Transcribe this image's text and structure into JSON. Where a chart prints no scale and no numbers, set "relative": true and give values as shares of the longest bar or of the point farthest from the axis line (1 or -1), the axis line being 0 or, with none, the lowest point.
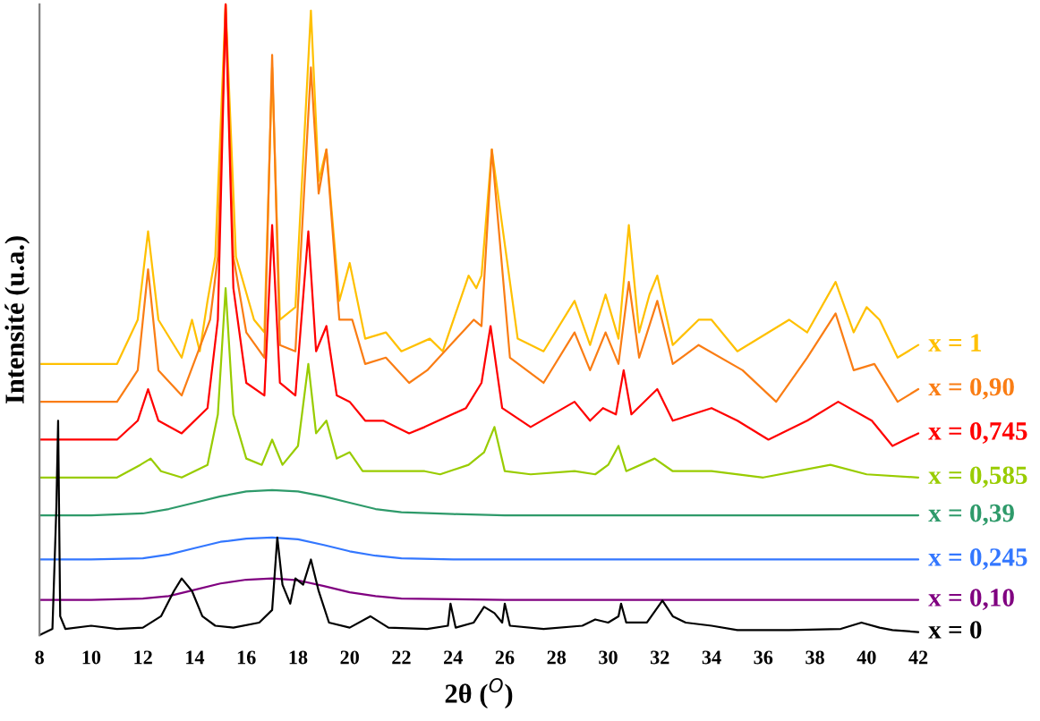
{
  "chart_data": {
    "type": "line",
    "relative": true,
    "xlabel": "2θ ($^{O}$)",
    "ylabel": "Intensité (u.a.)",
    "xlim": [
      8,
      42
    ],
    "xticks": [
      8,
      10,
      12,
      14,
      16,
      18,
      20,
      22,
      24,
      26,
      28,
      30,
      32,
      34,
      36,
      38,
      40,
      42
    ],
    "grid": false,
    "legend": false,
    "marker": "none",
    "line_style": "solid",
    "series": [
      {
        "name": "x = 1",
        "color": "#ffc000",
        "x": [
          8,
          11,
          11.8,
          12.2,
          12.6,
          13.5,
          13.9,
          14.2,
          14.5,
          14.8,
          15.2,
          15.6,
          16.3,
          16.7,
          17.0,
          17.3,
          17.9,
          18.5,
          18.8,
          19.1,
          19.6,
          20.0,
          20.6,
          21.4,
          22,
          23.1,
          23.6,
          24.6,
          24.9,
          25.1,
          25.5,
          26.5,
          27.5,
          28.7,
          29.3,
          29.9,
          30.4,
          30.8,
          31.2,
          31.6,
          31.9,
          32.5,
          33.5,
          34,
          35,
          37,
          37.7,
          38.8,
          39.5,
          40,
          40.5,
          41.2,
          42
        ],
        "values": [
          0.43,
          0.43,
          0.5,
          0.64,
          0.5,
          0.44,
          0.5,
          0.45,
          0.53,
          0.6,
          1.0,
          0.6,
          0.5,
          0.48,
          0.9,
          0.5,
          0.52,
          0.99,
          0.72,
          0.77,
          0.53,
          0.59,
          0.47,
          0.48,
          0.45,
          0.47,
          0.45,
          0.57,
          0.55,
          0.57,
          0.77,
          0.47,
          0.45,
          0.53,
          0.46,
          0.54,
          0.47,
          0.65,
          0.48,
          0.54,
          0.57,
          0.46,
          0.5,
          0.5,
          0.45,
          0.5,
          0.48,
          0.56,
          0.48,
          0.52,
          0.5,
          0.44,
          0.46
        ]
      },
      {
        "name": "x = 0,90",
        "color": "#fa7d14",
        "x": [
          8,
          11,
          11.8,
          12.2,
          12.6,
          13.5,
          14.6,
          14.9,
          15.2,
          15.5,
          16,
          16.7,
          17.0,
          17.3,
          17.9,
          18.5,
          18.8,
          19.1,
          19.6,
          20.1,
          20.6,
          21.4,
          22.3,
          23,
          24.8,
          25.1,
          25.5,
          26.2,
          27.5,
          28.7,
          29.3,
          29.9,
          30.4,
          30.8,
          31.2,
          31.9,
          32.5,
          33.5,
          35.2,
          36.5,
          37.7,
          38.8,
          39.5,
          40.3,
          41.2,
          42
        ],
        "values": [
          0.37,
          0.37,
          0.42,
          0.58,
          0.42,
          0.38,
          0.5,
          0.6,
          1.0,
          0.6,
          0.48,
          0.44,
          0.92,
          0.46,
          0.45,
          0.9,
          0.7,
          0.77,
          0.5,
          0.5,
          0.43,
          0.44,
          0.4,
          0.42,
          0.5,
          0.49,
          0.77,
          0.44,
          0.4,
          0.48,
          0.42,
          0.48,
          0.43,
          0.56,
          0.44,
          0.53,
          0.43,
          0.46,
          0.42,
          0.37,
          0.44,
          0.51,
          0.42,
          0.43,
          0.37,
          0.39
        ]
      },
      {
        "name": "x = 0,745",
        "color": "#ff0000",
        "x": [
          8,
          11,
          11.8,
          12.2,
          12.6,
          13.5,
          14.5,
          14.9,
          15.2,
          15.5,
          16,
          16.7,
          17.0,
          17.3,
          17.9,
          18.4,
          18.7,
          19.1,
          19.5,
          20,
          20.6,
          21.3,
          22.3,
          22.9,
          24.5,
          25.1,
          25.45,
          25.9,
          27,
          28.7,
          29.3,
          29.8,
          30.3,
          30.6,
          30.9,
          31.9,
          32.5,
          34,
          35,
          36.2,
          37.7,
          38.9,
          40.2,
          41,
          42
        ],
        "values": [
          0.31,
          0.31,
          0.34,
          0.39,
          0.34,
          0.32,
          0.36,
          0.5,
          1.0,
          0.55,
          0.4,
          0.38,
          0.65,
          0.4,
          0.38,
          0.64,
          0.45,
          0.49,
          0.38,
          0.37,
          0.34,
          0.34,
          0.32,
          0.33,
          0.36,
          0.4,
          0.49,
          0.36,
          0.33,
          0.37,
          0.34,
          0.36,
          0.35,
          0.42,
          0.35,
          0.39,
          0.34,
          0.36,
          0.34,
          0.31,
          0.34,
          0.37,
          0.34,
          0.3,
          0.32
        ]
      },
      {
        "name": "x = 0,585",
        "color": "#99cc00",
        "x": [
          8,
          11,
          11.9,
          12.3,
          12.7,
          13.5,
          14.5,
          14.9,
          15.2,
          15.5,
          16,
          16.6,
          17.0,
          17.4,
          18.0,
          18.4,
          18.7,
          19.1,
          19.5,
          20,
          20.5,
          21.3,
          22.9,
          23.5,
          24.6,
          25.2,
          25.6,
          26,
          27,
          28.7,
          29.5,
          30.0,
          30.4,
          30.7,
          31.8,
          32.5,
          34,
          36,
          38.6,
          40,
          42
        ],
        "values": [
          0.25,
          0.25,
          0.27,
          0.28,
          0.26,
          0.25,
          0.27,
          0.35,
          0.55,
          0.35,
          0.28,
          0.27,
          0.31,
          0.27,
          0.3,
          0.43,
          0.32,
          0.34,
          0.28,
          0.29,
          0.26,
          0.26,
          0.26,
          0.255,
          0.27,
          0.29,
          0.33,
          0.26,
          0.255,
          0.26,
          0.255,
          0.27,
          0.3,
          0.26,
          0.28,
          0.26,
          0.26,
          0.25,
          0.27,
          0.255,
          0.25
        ]
      },
      {
        "name": "x = 0,39",
        "color": "#2e9a6a",
        "x": [
          8,
          10,
          12,
          13,
          14,
          15,
          16,
          17,
          18,
          19,
          20,
          21,
          22,
          24,
          26,
          30,
          35,
          42
        ],
        "values": [
          0.19,
          0.19,
          0.193,
          0.2,
          0.21,
          0.22,
          0.228,
          0.23,
          0.228,
          0.22,
          0.21,
          0.2,
          0.195,
          0.192,
          0.19,
          0.19,
          0.19,
          0.19
        ]
      },
      {
        "name": "x = 0,245",
        "color": "#3377ff",
        "x": [
          8,
          10,
          12,
          13,
          14,
          15,
          16,
          17,
          18,
          19,
          20,
          21,
          22,
          24,
          26,
          30,
          35,
          42
        ],
        "values": [
          0.12,
          0.12,
          0.122,
          0.128,
          0.138,
          0.148,
          0.153,
          0.155,
          0.152,
          0.143,
          0.133,
          0.126,
          0.122,
          0.12,
          0.12,
          0.12,
          0.12,
          0.12
        ]
      },
      {
        "name": "x = 0,10",
        "color": "#800080",
        "x": [
          8,
          10,
          12,
          13,
          14,
          15,
          16,
          17,
          18,
          19,
          20,
          21,
          22,
          24,
          26,
          30,
          35,
          42
        ],
        "values": [
          0.056,
          0.056,
          0.058,
          0.062,
          0.072,
          0.082,
          0.088,
          0.09,
          0.087,
          0.078,
          0.068,
          0.062,
          0.058,
          0.057,
          0.056,
          0.056,
          0.056,
          0.056
        ]
      },
      {
        "name": "x = 0",
        "color": "#000000",
        "x": [
          8,
          8.5,
          8.65,
          8.72,
          8.8,
          9,
          10,
          11,
          12,
          12.7,
          13.2,
          13.5,
          13.9,
          14.3,
          14.8,
          15.5,
          16.5,
          17.0,
          17.2,
          17.4,
          17.7,
          17.9,
          18.2,
          18.5,
          18.8,
          19.2,
          20,
          20.8,
          21.5,
          23,
          23.8,
          23.9,
          24.1,
          24.8,
          25.2,
          25.6,
          25.9,
          26.0,
          26.2,
          27.5,
          29,
          29.5,
          30,
          30.4,
          30.5,
          30.7,
          31.5,
          32.1,
          32.5,
          33,
          34,
          35,
          37,
          39,
          39.8,
          40.5,
          41,
          42
        ],
        "values": [
          0.0,
          0.01,
          0.2,
          0.34,
          0.03,
          0.01,
          0.015,
          0.01,
          0.012,
          0.03,
          0.07,
          0.09,
          0.07,
          0.03,
          0.015,
          0.012,
          0.02,
          0.04,
          0.155,
          0.08,
          0.05,
          0.09,
          0.08,
          0.12,
          0.07,
          0.02,
          0.012,
          0.03,
          0.012,
          0.01,
          0.015,
          0.05,
          0.012,
          0.02,
          0.045,
          0.035,
          0.02,
          0.05,
          0.015,
          0.01,
          0.015,
          0.025,
          0.02,
          0.03,
          0.05,
          0.02,
          0.02,
          0.055,
          0.03,
          0.02,
          0.015,
          0.008,
          0.008,
          0.01,
          0.02,
          0.012,
          0.008,
          0.005
        ]
      }
    ]
  }
}
